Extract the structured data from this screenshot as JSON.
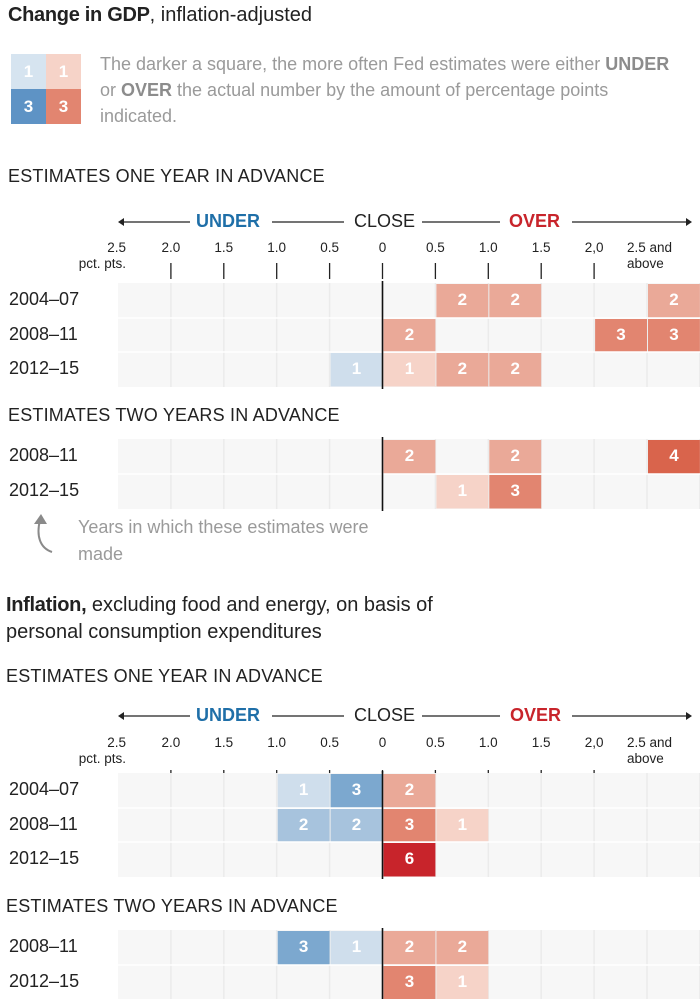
{
  "gdp": {
    "title_bold": "Change in GDP",
    "title_rest": ", inflation-adjusted",
    "legend": {
      "samples": [
        "1",
        "1",
        "3",
        "3"
      ],
      "text_1": "The darker a square, the more often Fed estimates were either",
      "under_word": "UNDER",
      "or_word": " or ",
      "over_word": "OVER",
      "text_2": " the actual number by the amount of percentage points indicated."
    }
  },
  "inflation": {
    "title_bold": "Inflation,",
    "title_rest": " excluding food and energy, on basis of",
    "title_line2": "personal consumption expenditures"
  },
  "axis": {
    "under": "UNDER",
    "close": "CLOSE",
    "over": "OVER",
    "ticks_top": [
      {
        "label": "2.5",
        "sub": "pct. pts."
      },
      {
        "label": "2.0"
      },
      {
        "label": "1.5"
      },
      {
        "label": "1.0"
      },
      {
        "label": "0.5"
      },
      {
        "label": "0"
      },
      {
        "label": "0.5"
      },
      {
        "label": "1.0"
      },
      {
        "label": "1.5"
      },
      {
        "label": "2,0"
      },
      {
        "label": "2.5 and",
        "sub": "above"
      }
    ],
    "ticks_bottom": [
      {
        "label": "2.5",
        "sub": "pct. pts."
      },
      {
        "label": "2.0"
      },
      {
        "label": "1.5"
      },
      {
        "label": "1.0"
      },
      {
        "label": "0.5"
      },
      {
        "label": "0"
      },
      {
        "label": "0.5"
      },
      {
        "label": "1.0"
      },
      {
        "label": "1.5"
      },
      {
        "label": "2,0"
      },
      {
        "label": "2.5 and",
        "sub": "above"
      }
    ]
  },
  "note": "Years in which these estimates were made",
  "colors": {
    "over": [
      "#fbe9e4",
      "#f6d3c8",
      "#eaa998",
      "#e28570",
      "#d9644c",
      "#d42e35",
      "#c8242b"
    ],
    "under": [
      "#e9eff6",
      "#cfdeec",
      "#a7c3dd",
      "#7ca8cf",
      "#5e93c5"
    ],
    "grid": "#ebebeb",
    "bg_cell": "#f7f7f7"
  },
  "chart_data": [
    {
      "type": "heatmap",
      "title": "Change in GDP, inflation-adjusted",
      "subtitle": "ESTIMATES ONE YEAR IN ADVANCE",
      "columns": [
        "2.5",
        "2.0",
        "1.5",
        "1.0",
        "0.5",
        "0",
        "0.5",
        "1.0",
        "1.5",
        "2,0",
        "2.5 and above"
      ],
      "rows": [
        {
          "label": "2004–07",
          "cells": [
            {
              "col": 6,
              "dir": "over",
              "value": 2
            },
            {
              "col": 7,
              "dir": "over",
              "value": 2
            },
            {
              "col": 10,
              "dir": "over",
              "value": 2
            }
          ]
        },
        {
          "label": "2008–11",
          "cells": [
            {
              "col": 5,
              "dir": "over",
              "value": 2
            },
            {
              "col": 9,
              "dir": "over",
              "value": 3
            },
            {
              "col": 10,
              "dir": "over",
              "value": 3
            }
          ]
        },
        {
          "label": "2012–15",
          "cells": [
            {
              "col": 4,
              "dir": "under",
              "value": 1
            },
            {
              "col": 5,
              "dir": "over",
              "value": 1
            },
            {
              "col": 6,
              "dir": "over",
              "value": 2
            },
            {
              "col": 7,
              "dir": "over",
              "value": 2
            }
          ]
        }
      ]
    },
    {
      "type": "heatmap",
      "title": "Change in GDP, inflation-adjusted",
      "subtitle": "ESTIMATES TWO YEARS IN ADVANCE",
      "columns": [
        "2.5",
        "2.0",
        "1.5",
        "1.0",
        "0.5",
        "0",
        "0.5",
        "1.0",
        "1.5",
        "2,0",
        "2.5 and above"
      ],
      "rows": [
        {
          "label": "2008–11",
          "cells": [
            {
              "col": 5,
              "dir": "over",
              "value": 2
            },
            {
              "col": 7,
              "dir": "over",
              "value": 2
            },
            {
              "col": 10,
              "dir": "over",
              "value": 4
            }
          ]
        },
        {
          "label": "2012–15",
          "cells": [
            {
              "col": 6,
              "dir": "over",
              "value": 1
            },
            {
              "col": 7,
              "dir": "over",
              "value": 3
            }
          ]
        }
      ]
    },
    {
      "type": "heatmap",
      "title": "Inflation, excluding food and energy, on basis of personal consumption expenditures",
      "subtitle": "ESTIMATES ONE YEAR IN ADVANCE",
      "columns": [
        "2.5",
        "2.0",
        "1.5",
        "1.0",
        "0.5",
        "0",
        "0.5",
        "1.0",
        "1.5",
        "2,0",
        "2.5 and above"
      ],
      "rows": [
        {
          "label": "2004–07",
          "cells": [
            {
              "col": 3,
              "dir": "under",
              "value": 1
            },
            {
              "col": 4,
              "dir": "under",
              "value": 3
            },
            {
              "col": 5,
              "dir": "over",
              "value": 2
            }
          ]
        },
        {
          "label": "2008–11",
          "cells": [
            {
              "col": 3,
              "dir": "under",
              "value": 2
            },
            {
              "col": 4,
              "dir": "under",
              "value": 2
            },
            {
              "col": 5,
              "dir": "over",
              "value": 3
            },
            {
              "col": 6,
              "dir": "over",
              "value": 1
            }
          ]
        },
        {
          "label": "2012–15",
          "cells": [
            {
              "col": 5,
              "dir": "over",
              "value": 6
            }
          ]
        }
      ]
    },
    {
      "type": "heatmap",
      "title": "Inflation, excluding food and energy, on basis of personal consumption expenditures",
      "subtitle": "ESTIMATES TWO YEARS IN ADVANCE",
      "columns": [
        "2.5",
        "2.0",
        "1.5",
        "1.0",
        "0.5",
        "0",
        "0.5",
        "1.0",
        "1.5",
        "2,0",
        "2.5 and above"
      ],
      "rows": [
        {
          "label": "2008–11",
          "cells": [
            {
              "col": 3,
              "dir": "under",
              "value": 3
            },
            {
              "col": 4,
              "dir": "under",
              "value": 1
            },
            {
              "col": 5,
              "dir": "over",
              "value": 2
            },
            {
              "col": 6,
              "dir": "over",
              "value": 2
            }
          ]
        },
        {
          "label": "2012–15",
          "cells": [
            {
              "col": 5,
              "dir": "over",
              "value": 3
            },
            {
              "col": 6,
              "dir": "over",
              "value": 1
            }
          ]
        }
      ]
    }
  ]
}
